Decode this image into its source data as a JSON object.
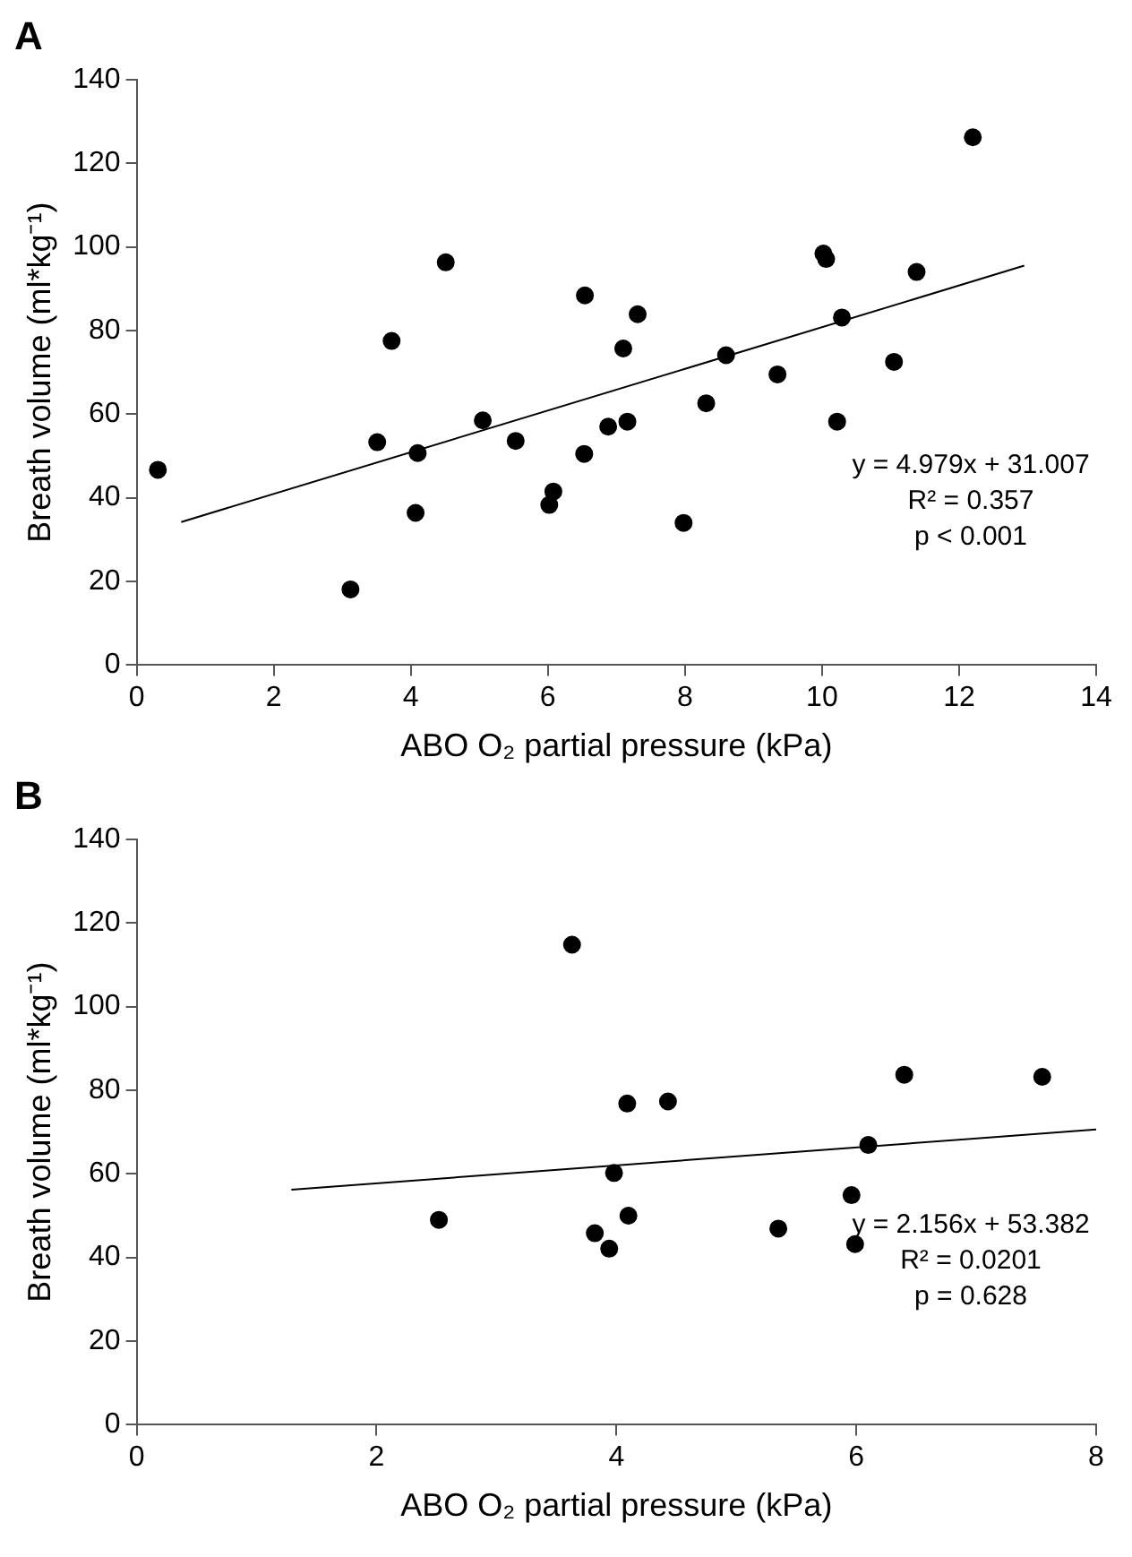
{
  "chart_data": [
    {
      "type": "scatter",
      "title": "A",
      "xlabel": "ABO O₂ partial pressure (kPa)",
      "ylabel": "Breath volume (ml*kg⁻¹)",
      "xlim": [
        0,
        14
      ],
      "xticks": [
        0,
        2,
        4,
        6,
        8,
        10,
        12,
        14
      ],
      "ylim": [
        0,
        140
      ],
      "yticks": [
        0,
        20,
        40,
        60,
        80,
        100,
        120,
        140
      ],
      "grid": false,
      "legend": false,
      "annotations": [
        "y = 4.979x + 31.007",
        "R² = 0.357",
        "p < 0.001"
      ],
      "series": [
        {
          "color": "#000000",
          "marker": "circle",
          "x": [
            0.31,
            3.12,
            3.51,
            3.72,
            4.07,
            4.1,
            4.51,
            5.05,
            5.53,
            6.02,
            6.08,
            6.53,
            6.54,
            6.88,
            7.1,
            7.16,
            7.31,
            7.98,
            8.31,
            8.6,
            9.35,
            10.02,
            10.06,
            10.22,
            10.29,
            11.05,
            11.38,
            12.2
          ],
          "values": [
            46.7,
            18.1,
            53.3,
            77.5,
            36.4,
            50.7,
            96.3,
            58.5,
            53.6,
            38.3,
            41.5,
            50.5,
            88.4,
            57,
            75.7,
            58.2,
            83.9,
            34,
            62.6,
            74.1,
            69.5,
            98.4,
            97.1,
            58.2,
            83.1,
            72.5,
            94,
            126.2
          ]
        },
        {
          "type": "line",
          "color": "#000000",
          "marker": "none",
          "line_style": "solid",
          "x": [
            0.65,
            12.95
          ],
          "values": [
            34.2,
            95.5
          ]
        }
      ]
    },
    {
      "type": "scatter",
      "title": "B",
      "xlabel": "ABO O₂ partial pressure (kPa)",
      "ylabel": "Breath volume (ml*kg⁻¹)",
      "xlim": [
        0,
        8
      ],
      "xticks": [
        0,
        2,
        4,
        6,
        8
      ],
      "ylim": [
        0,
        140
      ],
      "yticks": [
        0,
        20,
        40,
        60,
        80,
        100,
        120,
        140
      ],
      "grid": false,
      "legend": false,
      "annotations": [
        "y = 2.156x + 53.382",
        "R² = 0.0201",
        "p = 0.628"
      ],
      "series": [
        {
          "color": "#000000",
          "marker": "circle",
          "x": [
            2.52,
            3.63,
            3.82,
            3.94,
            3.98,
            4.09,
            4.1,
            4.43,
            5.35,
            5.96,
            5.99,
            6.1,
            6.4,
            7.55
          ],
          "values": [
            49,
            114.8,
            45.8,
            42.1,
            60.2,
            76.8,
            50,
            77.3,
            46.9,
            54.9,
            43.2,
            66.9,
            83.7,
            83.2
          ]
        },
        {
          "type": "line",
          "color": "#000000",
          "marker": "none",
          "line_style": "solid",
          "x": [
            1.29,
            8
          ],
          "values": [
            56.2,
            70.6
          ]
        }
      ]
    }
  ]
}
